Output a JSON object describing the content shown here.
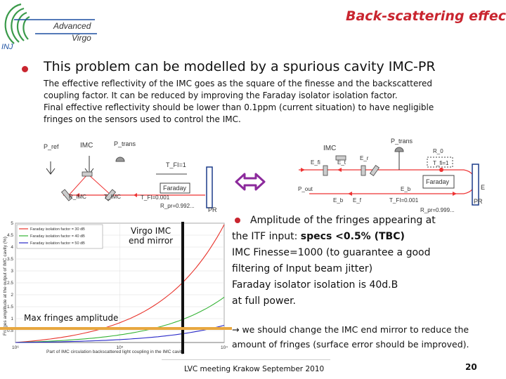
{
  "header": {
    "title": "Back-scattering effect",
    "logo": {
      "line1": "Advanced",
      "line2": "Virgo",
      "tag": "INJ"
    }
  },
  "main": {
    "bullet_heading": "This problem can be modelled by a spurious cavity IMC-PR",
    "paragraph": [
      "The effective reflectivity of the IMC goes as the square of the finesse and the backscattered",
      "coupling factor. It can be reduced by improving the Faraday isolator isolation factor.",
      "Final effective reflectivity should be lower than 0.1ppm (current situation) to have negligible",
      "fringes on the sensors used to control the IMC."
    ]
  },
  "diagram_left": {
    "labels": {
      "p_ref": "P_ref",
      "imc": "IMC",
      "p_trans": "P_trans",
      "t_fi": "T_FI=1",
      "faraday": "Faraday",
      "r_imc": "R_IMC",
      "t_imc": "T_IMC",
      "t_fi2": "T_FI=0.001",
      "r_pr": "R_pr=0.992...",
      "pr": "PR"
    }
  },
  "diagram_right": {
    "labels": {
      "p_trans": "P_trans",
      "imc": "IMC",
      "e_fi": "E_fi",
      "e_t": "E_t",
      "e_r": "E_r",
      "r_0": "R_0",
      "t_fi": "T_fi=1",
      "faraday": "Faraday",
      "p_out": "P_out",
      "e_b": "E_b",
      "e_f": "E_f",
      "e_b_b": "E_b",
      "t_fi2": "T_FI=0.001",
      "e": "E",
      "r_pr": "R_pr=0.999...",
      "pr": "PR"
    }
  },
  "chart_data": {
    "type": "line",
    "series": [
      {
        "name": "Faraday isolation factor = 30 dB",
        "color": "#e8342c"
      },
      {
        "name": "Faraday isolation factor = 40 dB",
        "color": "#35b335"
      },
      {
        "name": "Faraday isolation factor = 50 dB",
        "color": "#2828c8"
      }
    ],
    "x_scale": "log",
    "x_ticks": [
      "10⁶",
      "10⁵",
      "10⁴"
    ],
    "ylim": [
      0,
      5
    ],
    "y_ticks": [
      "5",
      "4.5",
      "4",
      "3.5",
      "3",
      "2.5",
      "2",
      "1.5",
      "1",
      "0.5"
    ],
    "ylabel": "Fringes amplitude at the output of IMC cavity (%)",
    "xlabel": "Part of IMC circulation backscattered light coupling in the IMC cavity",
    "annotation_vertical": {
      "line1": "Virgo IMC",
      "line2": "end mirror"
    },
    "annotation_horizontal": "Max fringes amplitude"
  },
  "right_text": {
    "line1": "Amplitude of the fringes appearing at",
    "line2_prefix": "the ITF input: ",
    "line2_bold": "specs <0.5% (TBC)",
    "line3": "IMC Finesse=1000 (to guarantee a good",
    "line4": "filtering of Input beam jitter)",
    "line5": "Faraday isolator isolation is 40d.B",
    "line6": "at full power.",
    "note1": "→ we should change the IMC end mirror to reduce the",
    "note2": "amount of  fringes (surface error should be improved)."
  },
  "footer": {
    "text": "LVC meeting Krakow September 2010",
    "page": "20"
  },
  "colors": {
    "accent": "#c9252f",
    "logo_green": "#3a9a4a",
    "logo_blue": "#1b4fa0"
  }
}
